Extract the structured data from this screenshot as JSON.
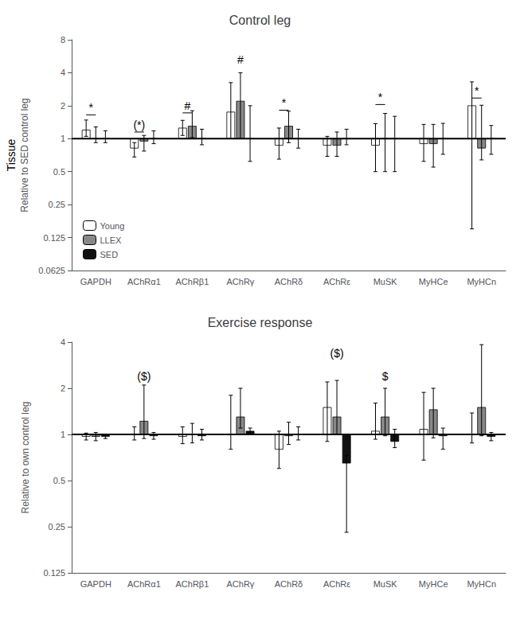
{
  "chart_data": [
    {
      "type": "bar",
      "title": "Control leg",
      "ylabel": "Relative to SED control leg",
      "categories": [
        "GAPDH",
        "AChRα1",
        "AChRβ1",
        "AChRγ",
        "AChRδ",
        "AChRε",
        "MuSK",
        "MyHCe",
        "MyHCn"
      ],
      "series": [
        {
          "name": "Young",
          "color": "#ffffff",
          "values": [
            1.2,
            0.82,
            1.25,
            1.75,
            0.87,
            0.87,
            0.87,
            0.9,
            2.0
          ],
          "err_lo": [
            0.15,
            0.14,
            0.18,
            0.75,
            0.22,
            0.18,
            0.37,
            0.28,
            1.85
          ],
          "err_hi": [
            0.28,
            0.1,
            0.22,
            1.5,
            0.38,
            0.18,
            0.5,
            0.45,
            1.3
          ]
        },
        {
          "name": "LLEX",
          "color": "#888888",
          "values": [
            1.0,
            0.95,
            1.3,
            2.2,
            1.3,
            0.87,
            1.0,
            0.9,
            0.82
          ],
          "err_lo": [
            0.08,
            0.18,
            0.28,
            1.2,
            0.38,
            0.18,
            0.5,
            0.35,
            0.18
          ],
          "err_hi": [
            0.28,
            0.12,
            0.5,
            1.8,
            0.48,
            0.28,
            0.7,
            0.45,
            1.2
          ]
        },
        {
          "name": "SED",
          "color": "#111111",
          "values": [
            1.0,
            1.0,
            1.0,
            1.0,
            1.0,
            1.0,
            1.0,
            1.0,
            1.0
          ],
          "err_lo": [
            0.08,
            0.1,
            0.12,
            0.38,
            0.18,
            0.12,
            0.5,
            0.28,
            0.28
          ],
          "err_hi": [
            0.18,
            0.18,
            0.22,
            1.0,
            0.22,
            0.22,
            0.6,
            0.38,
            0.32
          ]
        }
      ],
      "baseline": 1,
      "log": "y",
      "ylim": [
        0.0625,
        8.0
      ],
      "yticks": [
        0.0625,
        0.125,
        0.25,
        0.5,
        1,
        2,
        4,
        8
      ],
      "grid": false,
      "legend": "lower left",
      "annotations": [
        {
          "text": "Tissue"
        },
        {
          "text": "*",
          "category": "GAPDH",
          "from": "Young",
          "to": "LLEX",
          "y": 1.65
        },
        {
          "text": "(*)",
          "category": "AChRα1",
          "from": "Young",
          "to": "LLEX",
          "y": 1.15
        },
        {
          "text": "#",
          "category": "AChRβ1",
          "from": "Young",
          "to": "LLEX",
          "y": 1.72
        },
        {
          "text": "#",
          "category": "AChRγ",
          "at": "LLEX",
          "y": 4.7
        },
        {
          "text": "*",
          "category": "AChRδ",
          "from": "Young",
          "to": "LLEX",
          "y": 1.82
        },
        {
          "text": "*",
          "category": "MuSK",
          "from": "Young",
          "to": "LLEX",
          "y": 2.05
        },
        {
          "text": "*",
          "category": "MyHCn",
          "from": "Young",
          "to": "LLEX",
          "y": 2.35
        }
      ]
    },
    {
      "type": "bar",
      "title": "Exercise response",
      "ylabel": "Relative to own control leg",
      "categories": [
        "GAPDH",
        "AChRα1",
        "AChRβ1",
        "AChRγ",
        "AChRδ",
        "AChRε",
        "MuSK",
        "MyHCe",
        "MyHCn"
      ],
      "series": [
        {
          "name": "Young",
          "color": "#ffffff",
          "values": [
            0.97,
            1.0,
            0.97,
            1.0,
            0.8,
            1.5,
            1.05,
            1.08,
            1.0
          ],
          "err_lo": [
            0.05,
            0.08,
            0.1,
            0.2,
            0.2,
            0.6,
            0.12,
            0.4,
            0.12
          ],
          "err_hi": [
            0.05,
            0.12,
            0.15,
            0.8,
            0.25,
            0.7,
            0.55,
            0.8,
            0.38
          ]
        },
        {
          "name": "LLEX",
          "color": "#888888",
          "values": [
            0.97,
            1.22,
            1.0,
            1.3,
            0.98,
            1.3,
            1.3,
            1.45,
            1.5
          ],
          "err_lo": [
            0.06,
            0.28,
            0.12,
            0.2,
            0.12,
            0.3,
            0.32,
            0.5,
            0.52
          ],
          "err_hi": [
            0.06,
            0.88,
            0.18,
            0.7,
            0.22,
            0.95,
            0.7,
            0.55,
            2.35
          ]
        },
        {
          "name": "SED",
          "color": "#111111",
          "values": [
            0.97,
            0.98,
            0.98,
            1.05,
            1.0,
            0.65,
            0.9,
            0.98,
            0.97
          ],
          "err_lo": [
            0.03,
            0.05,
            0.06,
            0.05,
            0.08,
            0.42,
            0.08,
            0.18,
            0.06
          ],
          "err_hi": [
            0.03,
            0.05,
            0.1,
            0.05,
            0.12,
            0.08,
            0.18,
            0.12,
            0.06
          ]
        }
      ],
      "baseline": 1,
      "log": "y",
      "ylim": [
        0.125,
        4.0
      ],
      "yticks": [
        0.125,
        0.25,
        0.5,
        1,
        2,
        4
      ],
      "grid": false,
      "legend": false,
      "annotations": [
        {
          "text": "($)",
          "category": "AChRα1",
          "at": "LLEX",
          "y": 2.2
        },
        {
          "text": "($)",
          "category": "AChRε",
          "at": "LLEX",
          "y": 3.1
        },
        {
          "text": "$",
          "category": "MuSK",
          "at": "LLEX",
          "y": 2.2
        }
      ]
    }
  ]
}
